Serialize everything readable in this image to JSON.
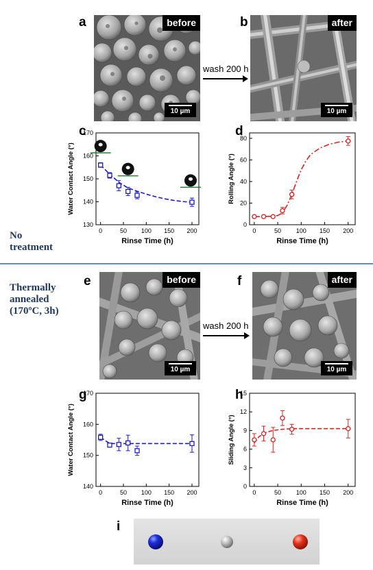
{
  "panels": {
    "a": "a",
    "b": "b",
    "c": "c",
    "d": "d",
    "e": "e",
    "f": "f",
    "g": "g",
    "h": "h",
    "i": "i"
  },
  "sem": {
    "before": "before",
    "after": "after",
    "scale": "10 µm"
  },
  "wash": "wash 200 h",
  "side": {
    "no_treatment": [
      "No",
      "treatment"
    ],
    "annealed": [
      "Thermally",
      "annealed",
      "(170ºC, 3h)"
    ]
  },
  "colors": {
    "blue": "#1a1acc",
    "red": "#dd2020",
    "divider": "#5b8dc4",
    "side_text": "#1f3864"
  },
  "chart_data": [
    {
      "id": "c",
      "type": "scatter",
      "xlabel": "Rinse Time (h)",
      "ylabel": "Water Contact Angle (°)",
      "xlim": [
        -10,
        215
      ],
      "ylim": [
        130,
        170
      ],
      "xticks": [
        0,
        50,
        100,
        150,
        200
      ],
      "yticks": [
        130,
        140,
        150,
        160,
        170
      ],
      "color": "#1a1acc",
      "marker": "square",
      "x": [
        0,
        20,
        40,
        60,
        80,
        200
      ],
      "y": [
        156,
        151.5,
        147,
        144.5,
        142.8,
        139.8
      ],
      "err": [
        1,
        1.2,
        2.2,
        1.8,
        1.5,
        1.8
      ],
      "fit": {
        "x": [
          0,
          20,
          40,
          60,
          80,
          100,
          120,
          140,
          160,
          180,
          200
        ],
        "y": [
          156,
          152,
          148.5,
          146,
          144.6,
          143.3,
          142.2,
          141.3,
          140.6,
          140.1,
          139.8
        ]
      }
    },
    {
      "id": "d",
      "type": "scatter",
      "xlabel": "Rinse Time (h)",
      "ylabel": "Rolling Angle (°)",
      "xlim": [
        -10,
        215
      ],
      "ylim": [
        0,
        85
      ],
      "xticks": [
        0,
        50,
        100,
        150,
        200
      ],
      "yticks": [
        0,
        20,
        40,
        60,
        80
      ],
      "color": "#dd2020",
      "marker": "circle",
      "x": [
        0,
        20,
        40,
        60,
        80,
        200
      ],
      "y": [
        7.5,
        7.5,
        7.5,
        13,
        28,
        77.5
      ],
      "err": [
        0.7,
        0.7,
        0.7,
        3,
        4,
        4
      ],
      "fit": {
        "x": [
          0,
          20,
          40,
          50,
          60,
          70,
          80,
          90,
          100,
          110,
          120,
          140,
          160,
          180,
          200
        ],
        "y": [
          7.5,
          7.5,
          7.8,
          8.5,
          11,
          18,
          28,
          40,
          51,
          59,
          65,
          71,
          74.5,
          76.5,
          77.5
        ]
      }
    },
    {
      "id": "g",
      "type": "scatter",
      "xlabel": "Rinse Time (h)",
      "ylabel": "Water Contact Angle (°)",
      "xlim": [
        -10,
        215
      ],
      "ylim": [
        140,
        170
      ],
      "xticks": [
        0,
        50,
        100,
        150,
        200
      ],
      "yticks": [
        140,
        150,
        160,
        170
      ],
      "color": "#1a1acc",
      "marker": "square",
      "x": [
        0,
        20,
        40,
        60,
        80,
        200
      ],
      "y": [
        155.8,
        153.3,
        153.5,
        154,
        151.5,
        153.8
      ],
      "err": [
        1,
        0.6,
        2,
        2.5,
        1.5,
        2.8
      ],
      "fit": {
        "x": [
          0,
          20,
          40,
          60,
          80,
          100,
          120,
          140,
          160,
          180,
          200
        ],
        "y": [
          155.8,
          153.8,
          153.8,
          153.8,
          153.8,
          153.8,
          153.8,
          153.8,
          153.8,
          153.8,
          153.8
        ]
      }
    },
    {
      "id": "h",
      "type": "scatter",
      "xlabel": "Rinse Time (h)",
      "ylabel": "Sliding Angle (°)",
      "xlim": [
        -10,
        215
      ],
      "ylim": [
        0,
        15
      ],
      "xticks": [
        0,
        50,
        100,
        150,
        200
      ],
      "yticks": [
        0,
        3,
        6,
        9,
        12,
        15
      ],
      "color": "#dd2020",
      "marker": "circle",
      "x": [
        0,
        20,
        40,
        60,
        80,
        200
      ],
      "y": [
        7.5,
        8.5,
        7.5,
        11,
        9.2,
        9.3
      ],
      "err": [
        1,
        1.2,
        2,
        1.2,
        0.8,
        1.5
      ],
      "fit": {
        "x": [
          0,
          10,
          20,
          30,
          40,
          50,
          60,
          70,
          80,
          100,
          120,
          140,
          160,
          180,
          200
        ],
        "y": [
          7,
          8,
          8.5,
          8.8,
          9,
          9.1,
          9.2,
          9.25,
          9.3,
          9.3,
          9.3,
          9.3,
          9.3,
          9.3,
          9.3
        ]
      }
    }
  ]
}
